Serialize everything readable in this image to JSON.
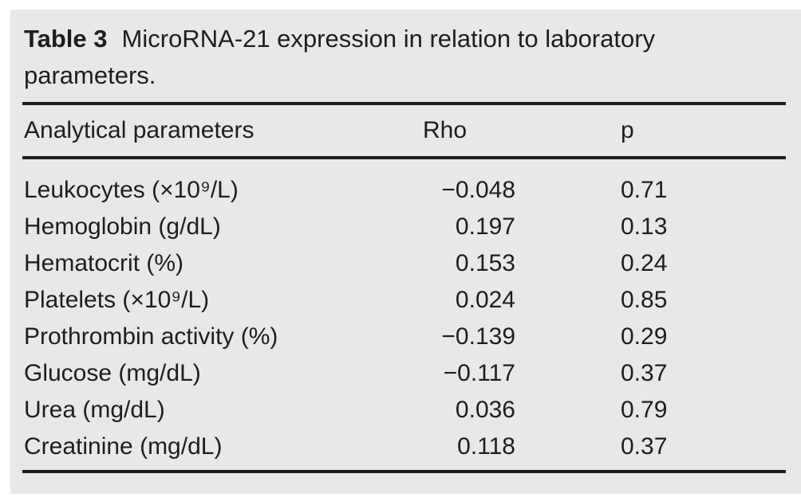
{
  "page": {
    "background_color": "#ffffff",
    "panel_color": "#e8e8e6",
    "text_color": "#1e1e1e",
    "rule_color": "#1e1e1e"
  },
  "table": {
    "label": "Table 3",
    "caption": "MicroRNA-21 expression in relation to laboratory parameters.",
    "columns": {
      "parameter": "Analytical parameters",
      "rho": "Rho",
      "p": "p"
    },
    "rows": [
      {
        "parameter": "Leukocytes (×10⁹/L)",
        "rho": "−0.048",
        "p": "0.71"
      },
      {
        "parameter": "Hemoglobin (g/dL)",
        "rho": "0.197",
        "p": "0.13"
      },
      {
        "parameter": "Hematocrit (%)",
        "rho": "0.153",
        "p": "0.24"
      },
      {
        "parameter": "Platelets (×10⁹/L)",
        "rho": "0.024",
        "p": "0.85"
      },
      {
        "parameter": "Prothrombin activity (%)",
        "rho": "−0.139",
        "p": "0.29"
      },
      {
        "parameter": "Glucose (mg/dL)",
        "rho": "−0.117",
        "p": "0.37"
      },
      {
        "parameter": "Urea (mg/dL)",
        "rho": "0.036",
        "p": "0.79"
      },
      {
        "parameter": "Creatinine (mg/dL)",
        "rho": "0.118",
        "p": "0.37"
      }
    ]
  }
}
